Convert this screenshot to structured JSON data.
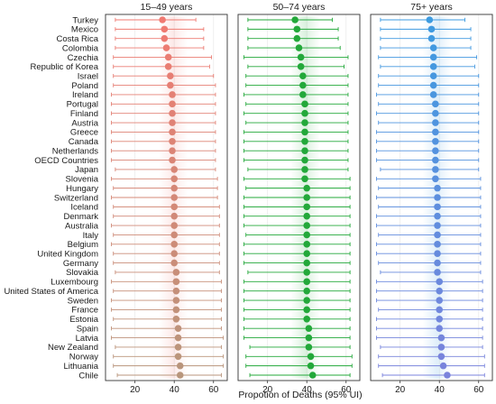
{
  "chart_data": {
    "type": "forest",
    "xlabel": "Propotion of Deaths (95% UI)",
    "xlim": [
      5,
      67
    ],
    "xticks": [
      20,
      40,
      60
    ],
    "grid": true,
    "countries": [
      "Turkey",
      "Mexico",
      "Costa Rica",
      "Colombia",
      "Czechia",
      "Republic of Korea",
      "Israel",
      "Poland",
      "Ireland",
      "Portugal",
      "Finland",
      "Austria",
      "Greece",
      "Canada",
      "Netherlands",
      "OECD Countries",
      "Japan",
      "Slovenia",
      "Hungary",
      "Switzerland",
      "Iceland",
      "Denmark",
      "Australia",
      "Italy",
      "Belgium",
      "United Kingdom",
      "Germany",
      "Slovakia",
      "Luxembourg",
      "United States of America",
      "Sweden",
      "France",
      "Estonia",
      "Spain",
      "Latvia",
      "New Zealand",
      "Norway",
      "Lithuania",
      "Chile"
    ],
    "panels": [
      {
        "title": "15–49 years",
        "color_start": "#f07a72",
        "color_end": "#b8967c",
        "estimates": [
          34,
          35,
          35,
          36,
          37,
          37,
          38,
          38,
          39,
          39,
          39,
          39,
          39,
          39,
          39,
          39,
          40,
          40,
          40,
          40,
          40,
          40,
          40,
          40,
          40,
          40,
          40,
          41,
          41,
          41,
          41,
          41,
          41,
          42,
          42,
          42,
          42,
          43,
          43
        ],
        "lower": [
          10,
          10,
          10,
          10,
          9,
          9,
          9,
          9,
          8,
          8,
          8,
          8,
          8,
          8,
          8,
          8,
          10,
          8,
          9,
          8,
          9,
          9,
          8,
          9,
          8,
          9,
          9,
          10,
          8,
          9,
          8,
          8,
          9,
          8,
          8,
          10,
          9,
          9,
          11
        ],
        "upper": [
          51,
          55,
          55,
          55,
          59,
          58,
          60,
          61,
          61,
          61,
          61,
          61,
          61,
          61,
          61,
          61,
          61,
          62,
          62,
          62,
          63,
          63,
          63,
          63,
          63,
          63,
          63,
          63,
          64,
          64,
          64,
          64,
          64,
          64,
          65,
          64,
          65,
          65,
          64
        ]
      },
      {
        "title": "50–74 years",
        "color_start": "#23a83a",
        "color_end": "#23a83a",
        "estimates": [
          34,
          35,
          35,
          36,
          37,
          37,
          38,
          38,
          38,
          39,
          39,
          39,
          39,
          39,
          39,
          39,
          39,
          39,
          40,
          40,
          40,
          40,
          40,
          40,
          40,
          40,
          40,
          40,
          40,
          40,
          40,
          40,
          40,
          41,
          41,
          41,
          42,
          42,
          43
        ],
        "lower": [
          10,
          10,
          10,
          10,
          8,
          10,
          9,
          9,
          8,
          9,
          8,
          9,
          8,
          8,
          8,
          8,
          10,
          8,
          9,
          8,
          8,
          8,
          8,
          9,
          8,
          8,
          8,
          10,
          8,
          8,
          8,
          8,
          8,
          8,
          8,
          11,
          9,
          9,
          11
        ],
        "upper": [
          53,
          56,
          56,
          57,
          61,
          59,
          61,
          61,
          61,
          61,
          61,
          61,
          61,
          61,
          61,
          61,
          61,
          62,
          62,
          62,
          62,
          62,
          62,
          62,
          62,
          62,
          62,
          62,
          62,
          62,
          62,
          62,
          62,
          62,
          62,
          62,
          63,
          63,
          62
        ]
      },
      {
        "title": "75+ years",
        "color_start": "#3d9be0",
        "color_end": "#7b83dc",
        "estimates": [
          35,
          36,
          36,
          37,
          37,
          37,
          37,
          37,
          37,
          38,
          38,
          38,
          38,
          38,
          38,
          38,
          38,
          38,
          39,
          39,
          39,
          39,
          39,
          39,
          39,
          39,
          39,
          39,
          40,
          40,
          40,
          40,
          40,
          40,
          41,
          41,
          41,
          42,
          44
        ],
        "lower": [
          10,
          10,
          10,
          10,
          9,
          10,
          9,
          9,
          8,
          9,
          8,
          9,
          8,
          8,
          8,
          8,
          10,
          8,
          9,
          8,
          9,
          8,
          8,
          9,
          8,
          8,
          9,
          10,
          8,
          8,
          8,
          9,
          8,
          8,
          8,
          10,
          9,
          9,
          11
        ],
        "upper": [
          53,
          56,
          56,
          56,
          59,
          58,
          60,
          60,
          60,
          60,
          60,
          60,
          60,
          60,
          60,
          60,
          60,
          61,
          61,
          61,
          61,
          61,
          61,
          61,
          61,
          61,
          61,
          61,
          62,
          62,
          62,
          62,
          62,
          62,
          62,
          62,
          63,
          63,
          63
        ]
      }
    ]
  }
}
